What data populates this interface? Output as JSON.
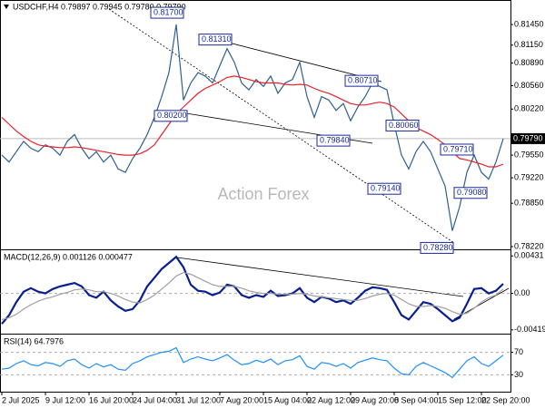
{
  "chart_data": [
    {
      "type": "line",
      "title": "USDCHF,H4  0.79897 0.79945 0.79780 0.79790",
      "watermark": "Action Forex",
      "categories": [
        "2 Jul 2025",
        null,
        null,
        null,
        null,
        null,
        "9 Jul 12:00",
        null,
        null,
        null,
        null,
        null,
        "16 Jul 20:00",
        null,
        null,
        null,
        null,
        null,
        "24 Jul 04:00",
        null,
        null,
        null,
        null,
        null,
        "31 Jul 12:00",
        null,
        null,
        null,
        null,
        null,
        "7 Aug 20:00",
        null,
        null,
        null,
        null,
        null,
        "15 Aug 04:00",
        null,
        null,
        null,
        null,
        null,
        "22 Aug 12:00",
        null,
        null,
        null,
        null,
        null,
        "29 Aug 20:00",
        null,
        null,
        null,
        null,
        null,
        "8 Sep 04:00",
        null,
        null,
        null,
        null,
        null,
        "15 Sep 12:00",
        null,
        null,
        null,
        null,
        null,
        "22 Sep 20:00",
        null,
        null,
        null
      ],
      "series": [
        {
          "color": "#2f5f8f",
          "values": [
            0.7955,
            0.7945,
            0.796,
            0.7975,
            0.7965,
            0.796,
            0.797,
            0.7965,
            0.7955,
            0.7975,
            0.7985,
            0.7965,
            0.795,
            0.796,
            0.7945,
            0.7955,
            0.7935,
            0.793,
            0.795,
            0.7965,
            0.7985,
            0.801,
            0.804,
            0.8075,
            0.8145,
            0.8035,
            0.806,
            0.8075,
            0.807,
            0.806,
            0.8085,
            0.811,
            0.809,
            0.806,
            0.805,
            0.8065,
            0.8055,
            0.807,
            0.8045,
            0.806,
            0.8065,
            0.809,
            0.804,
            0.801,
            0.804,
            0.8035,
            0.802,
            0.803,
            0.8005,
            0.8025,
            0.804,
            0.806,
            0.8055,
            0.805,
            0.8,
            0.7955,
            0.7935,
            0.796,
            0.7975,
            0.796,
            0.7935,
            0.791,
            0.7845,
            0.788,
            0.793,
            0.7955,
            0.793,
            0.792,
            0.7945,
            0.7979
          ]
        },
        {
          "color": "#e8202a",
          "values": [
            0.801,
            0.8,
            0.799,
            0.7982,
            0.7975,
            0.797,
            0.7968,
            0.7967,
            0.7966,
            0.7966,
            0.7967,
            0.7966,
            0.7964,
            0.7962,
            0.796,
            0.7958,
            0.7956,
            0.7955,
            0.7955,
            0.7957,
            0.7962,
            0.797,
            0.7985,
            0.8,
            0.8015,
            0.8025,
            0.8035,
            0.8045,
            0.8052,
            0.8057,
            0.8062,
            0.8068,
            0.807,
            0.8068,
            0.8065,
            0.8062,
            0.806,
            0.806,
            0.806,
            0.8058,
            0.8057,
            0.8058,
            0.8057,
            0.8052,
            0.8048,
            0.8045,
            0.804,
            0.8035,
            0.803,
            0.8028,
            0.8028,
            0.803,
            0.8032,
            0.803,
            0.8025,
            0.8015,
            0.8005,
            0.7995,
            0.799,
            0.7985,
            0.7978,
            0.797,
            0.796,
            0.795,
            0.7948,
            0.7945,
            0.7942,
            0.7938,
            0.7938,
            0.7942
          ]
        }
      ],
      "last_price": {
        "value": 0.7979,
        "label": "0.79790"
      },
      "annotations": [
        {
          "value": 0.817,
          "label": "0.81700"
        },
        {
          "value": 0.8131,
          "label": "0.81310"
        },
        {
          "value": 0.8071,
          "label": "0.80710"
        },
        {
          "value": 0.802,
          "label": "0.80200"
        },
        {
          "value": 0.7984,
          "label": "0.79840"
        },
        {
          "value": 0.8006,
          "label": "0.80060"
        },
        {
          "value": 0.7971,
          "label": "0.79710"
        },
        {
          "value": 0.7914,
          "label": "0.79140"
        },
        {
          "value": 0.7908,
          "label": "0.79080"
        },
        {
          "value": 0.7828,
          "label": "0.78280"
        }
      ],
      "ylim": [
        0.7818,
        0.8178
      ],
      "yticks": [
        {
          "value": 0.8145,
          "label": "0.81450"
        },
        {
          "value": 0.8115,
          "label": "0.81150"
        },
        {
          "value": 0.8089,
          "label": "0.80890"
        },
        {
          "value": 0.8056,
          "label": "0.80560"
        },
        {
          "value": 0.8022,
          "label": "0.80220"
        },
        {
          "value": 0.7955,
          "label": "0.79550"
        },
        {
          "value": 0.7922,
          "label": "0.79220"
        },
        {
          "value": 0.7885,
          "label": "0.78850"
        },
        {
          "value": 0.7822,
          "label": "0.78220"
        }
      ]
    },
    {
      "type": "line",
      "title": "MACD(12,26,9) 0.001126 0.000477",
      "series": [
        {
          "color": "#0a1f8f",
          "values": [
            -0.0035,
            -0.0025,
            -0.001,
            0.0002,
            0.0006,
            0.0002,
            0.0,
            0.0005,
            0.0008,
            0.001,
            0.0012,
            0.0008,
            -0.0002,
            -0.0005,
            0.0002,
            -0.0008,
            -0.0015,
            -0.002,
            -0.0018,
            -0.0008,
            0.0008,
            0.0018,
            0.0028,
            0.0035,
            0.0042,
            0.003,
            0.001,
            0.0003,
            0.0002,
            -0.0002,
            0.0001,
            0.001,
            0.0008,
            -0.0002,
            -0.0005,
            -0.0002,
            -0.0004,
            0.0003,
            -0.0003,
            -0.0002,
            0.0,
            0.0006,
            -0.0005,
            -0.001,
            -0.0004,
            -0.0006,
            -0.001,
            -0.0008,
            -0.0012,
            -0.0005,
            0.0003,
            0.0007,
            0.0006,
            0.0004,
            -0.001,
            -0.0025,
            -0.003,
            -0.002,
            -0.001,
            -0.0012,
            -0.0018,
            -0.0025,
            -0.0032,
            -0.0028,
            -0.0012,
            0.0005,
            0.0006,
            0.0,
            0.0003,
            0.0011
          ]
        },
        {
          "color": "#a0a0a0",
          "values": [
            -0.003,
            -0.0028,
            -0.0024,
            -0.0018,
            -0.0013,
            -0.0009,
            -0.0006,
            -0.0004,
            -0.0001,
            0.0001,
            0.0004,
            0.0005,
            0.0004,
            0.0002,
            0.0002,
            0.0,
            -0.0003,
            -0.0007,
            -0.001,
            -0.0011,
            -0.0007,
            -0.0002,
            0.0005,
            0.0012,
            0.002,
            0.0024,
            0.0022,
            0.0018,
            0.0014,
            0.001,
            0.0008,
            0.0008,
            0.0008,
            0.0006,
            0.0003,
            0.0001,
            0.0,
            0.0,
            -0.0001,
            -0.0001,
            -0.0001,
            0.0,
            -0.0001,
            -0.0003,
            -0.0004,
            -0.0005,
            -0.0006,
            -0.0007,
            -0.0008,
            -0.0008,
            -0.0006,
            -0.0003,
            -0.0001,
            0.0,
            -0.0002,
            -0.0007,
            -0.0012,
            -0.0015,
            -0.0015,
            -0.0014,
            -0.0015,
            -0.0017,
            -0.0021,
            -0.0024,
            -0.0023,
            -0.0017,
            -0.001,
            -0.0005,
            -0.0002,
            0.0005
          ]
        }
      ],
      "ylim": [
        -0.00463,
        0.00496
      ],
      "yticks": [
        {
          "value": 0.00431,
          "label": "0.00431"
        },
        {
          "value": 0,
          "label": "0.00"
        },
        {
          "value": -0.004197,
          "label": "-0.004197"
        }
      ]
    },
    {
      "type": "line",
      "title": "RSI(14) 64.7976",
      "series": [
        {
          "color": "#1e90ff",
          "values": [
            40,
            42,
            50,
            55,
            48,
            46,
            52,
            50,
            45,
            55,
            58,
            48,
            42,
            50,
            44,
            48,
            40,
            38,
            50,
            55,
            62,
            66,
            70,
            72,
            78,
            52,
            58,
            62,
            58,
            55,
            60,
            66,
            56,
            48,
            50,
            56,
            52,
            58,
            48,
            55,
            57,
            64,
            45,
            40,
            52,
            50,
            45,
            50,
            42,
            52,
            56,
            60,
            57,
            55,
            42,
            32,
            30,
            45,
            52,
            46,
            40,
            34,
            25,
            40,
            55,
            62,
            50,
            45,
            55,
            65
          ]
        }
      ],
      "ylim": [
        0,
        100
      ],
      "yticks": [
        70,
        30
      ]
    }
  ]
}
